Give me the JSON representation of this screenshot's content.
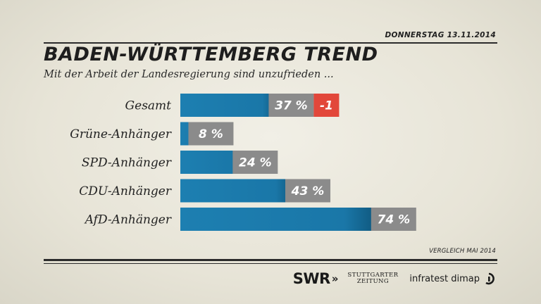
{
  "header": {
    "date": "DONNERSTAG  13.11.2014",
    "title": "BADEN-WÜRTTEMBERG TREND",
    "subtitle": "Mit der Arbeit der Landesregierung sind unzufrieden ..."
  },
  "chart_data": {
    "type": "bar",
    "orientation": "horizontal",
    "title": "BADEN-WÜRTTEMBERG TREND",
    "subtitle": "Mit der Arbeit der Landesregierung sind unzufrieden ...",
    "categories": [
      "Gesamt",
      "Grüne-Anhänger",
      "SPD-Anhänger",
      "CDU-Anhänger",
      "AfD-Anhänger"
    ],
    "values": [
      37,
      8,
      24,
      43,
      74
    ],
    "value_labels": [
      "37 %",
      "8 %",
      "24 %",
      "43 %",
      "74 %"
    ],
    "changes": [
      {
        "category": "Gesamt",
        "label": "-1",
        "value": -1
      }
    ],
    "xlim": [
      0,
      100
    ],
    "grid": false,
    "colors": {
      "bar": "#1d7fb1",
      "bar_dark": "#0c4f72",
      "value_box": "#8b8b8b",
      "change_box": "#e2473a"
    }
  },
  "footer": {
    "note": "VERGLEICH MAI 2014",
    "logo_swr": "SWR",
    "logo_swr_arrows": "»",
    "logo_stz_line1": "STUTTGARTER",
    "logo_stz_line2": "ZEITUNG",
    "logo_infratest": "infratest dimap"
  }
}
